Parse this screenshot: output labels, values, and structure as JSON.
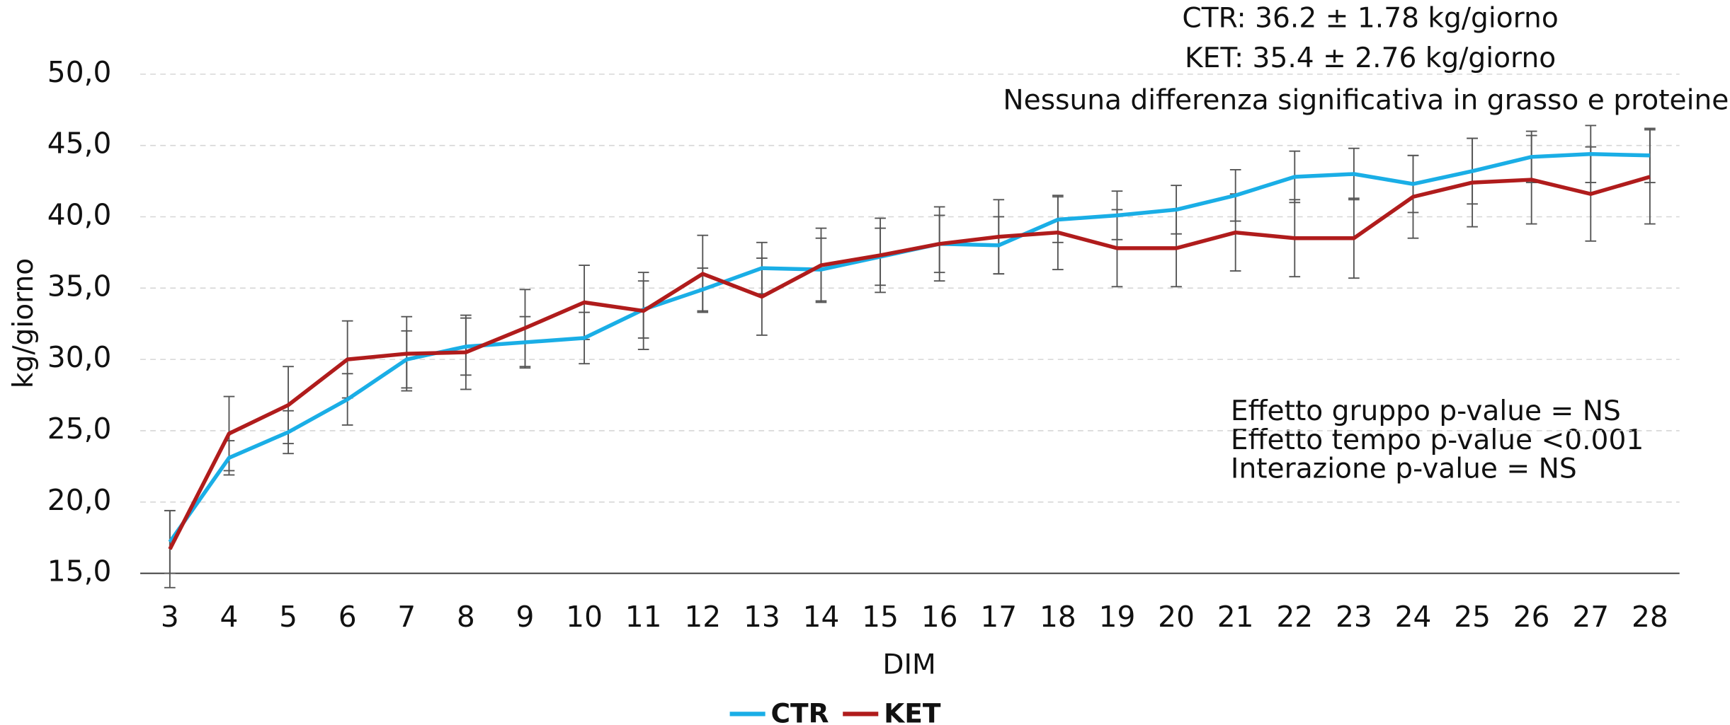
{
  "chart_data": {
    "type": "line",
    "annotations_top": [
      "CTR: 36.2 ± 1.78 kg/giorno",
      "KET: 35.4 ± 2.76 kg/giorno",
      "Nessuna differenza significativa in grasso e proteine."
    ],
    "annotations_stats": [
      "Effetto gruppo p-value = NS",
      "Effetto tempo p-value <0.001",
      "Interazione p-value = NS"
    ],
    "x_label": "DIM",
    "y_label": "kg/giorno",
    "categories": [
      "3",
      "4",
      "5",
      "6",
      "7",
      "8",
      "9",
      "10",
      "11",
      "12",
      "13",
      "14",
      "15",
      "16",
      "17",
      "18",
      "19",
      "20",
      "21",
      "22",
      "23",
      "24",
      "25",
      "26",
      "27",
      "28"
    ],
    "series": [
      {
        "name": "CTR",
        "color": "#1aaee6",
        "values": [
          17.2,
          23.1,
          24.9,
          27.2,
          30.0,
          30.9,
          31.2,
          31.5,
          33.5,
          34.9,
          36.4,
          36.3,
          37.2,
          38.1,
          38.0,
          39.8,
          40.1,
          40.5,
          41.5,
          42.8,
          43.0,
          42.3,
          43.2,
          44.2,
          44.4,
          44.3
        ],
        "errors": [
          2.2,
          1.2,
          1.5,
          1.8,
          2.0,
          2.0,
          1.8,
          1.8,
          2.0,
          1.5,
          1.8,
          2.2,
          2.0,
          2.0,
          2.0,
          1.6,
          1.7,
          1.7,
          1.8,
          1.8,
          1.8,
          2.0,
          2.3,
          1.8,
          2.0,
          1.9
        ]
      },
      {
        "name": "KET",
        "color": "#b01c1c",
        "values": [
          16.7,
          24.8,
          26.8,
          30.0,
          30.4,
          30.5,
          32.2,
          34.0,
          33.4,
          36.0,
          34.4,
          36.6,
          37.3,
          38.1,
          38.6,
          38.9,
          37.8,
          37.8,
          38.9,
          38.5,
          38.5,
          41.4,
          42.4,
          42.6,
          41.6,
          42.8
        ],
        "errors": [
          2.7,
          2.6,
          2.7,
          2.7,
          2.6,
          2.6,
          2.7,
          2.6,
          2.7,
          2.7,
          2.7,
          2.6,
          2.6,
          2.6,
          2.6,
          2.6,
          2.7,
          2.7,
          2.7,
          2.7,
          2.8,
          2.9,
          3.1,
          3.1,
          3.3,
          3.3
        ]
      }
    ],
    "ylim": [
      15,
      50
    ],
    "yticks": [
      {
        "value": 15,
        "label": "15,0"
      },
      {
        "value": 20,
        "label": "20,0"
      },
      {
        "value": 25,
        "label": "25,0"
      },
      {
        "value": 30,
        "label": "30,0"
      },
      {
        "value": 35,
        "label": "35,0"
      },
      {
        "value": 40,
        "label": "40,0"
      },
      {
        "value": 45,
        "label": "45,0"
      },
      {
        "value": 50,
        "label": "50,0"
      }
    ],
    "grid": true,
    "error_bar_color": "#555555",
    "legend": "bottom"
  }
}
